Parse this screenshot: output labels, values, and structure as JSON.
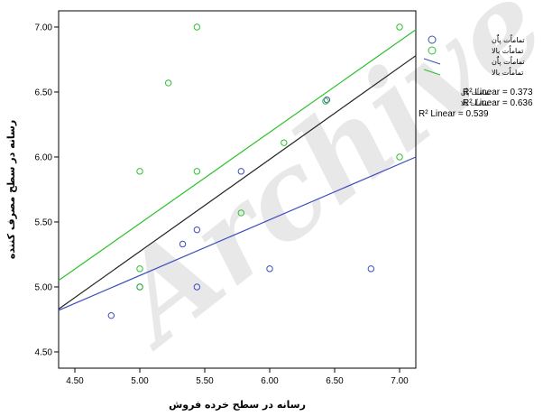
{
  "chart_data": {
    "type": "scatter",
    "xlabel": "رسانه در سطح خرده فروش",
    "ylabel": "رسانه در سطح مصرف کننده",
    "xlim": [
      4.375,
      7.125
    ],
    "ylim": [
      4.375,
      7.125
    ],
    "x_ticks": [
      "4.50",
      "5.00",
      "5.50",
      "6.00",
      "6.50",
      "7.00"
    ],
    "y_ticks": [
      "4.50",
      "5.00",
      "5.50",
      "6.00",
      "6.50",
      "7.00"
    ],
    "grid": false,
    "legend_position": "right",
    "watermark": "Archive",
    "series": [
      {
        "name": "تماماٌت پاٌٌن",
        "color": "#3b4cc0",
        "marker": "circle-open",
        "points": [
          {
            "x": 4.78,
            "y": 4.78
          },
          {
            "x": 5.0,
            "y": 5.0
          },
          {
            "x": 5.33,
            "y": 5.33
          },
          {
            "x": 5.44,
            "y": 5.44
          },
          {
            "x": 5.44,
            "y": 5.0
          },
          {
            "x": 5.78,
            "y": 5.89
          },
          {
            "x": 6.0,
            "y": 5.14
          },
          {
            "x": 6.44,
            "y": 6.44
          },
          {
            "x": 6.78,
            "y": 5.14
          }
        ]
      },
      {
        "name": "تماماٌت بالا",
        "color": "#2ec02e",
        "marker": "circle-open",
        "points": [
          {
            "x": 5.0,
            "y": 5.89
          },
          {
            "x": 5.0,
            "y": 5.14
          },
          {
            "x": 5.0,
            "y": 5.0
          },
          {
            "x": 5.22,
            "y": 6.57
          },
          {
            "x": 5.44,
            "y": 7.0
          },
          {
            "x": 5.44,
            "y": 5.89
          },
          {
            "x": 5.78,
            "y": 5.57
          },
          {
            "x": 6.11,
            "y": 6.11
          },
          {
            "x": 6.43,
            "y": 6.43
          },
          {
            "x": 7.0,
            "y": 7.0
          },
          {
            "x": 7.0,
            "y": 6.0
          }
        ]
      }
    ],
    "fit_lines": [
      {
        "name": "تماماٌت پاٌٌن",
        "color": "#3b4cc0",
        "x": [
          4.375,
          7.125
        ],
        "y": [
          4.82,
          6.0
        ],
        "r2_label": "R² Linear = 0.373"
      },
      {
        "name": "تماماٌت بالا",
        "color": "#2ec02e",
        "x": [
          4.375,
          7.125
        ],
        "y": [
          5.05,
          6.98
        ],
        "r2_label": "R² Linear = 0.636"
      },
      {
        "name": "",
        "color": "#222222",
        "x": [
          4.375,
          7.125
        ],
        "y": [
          4.83,
          6.78
        ],
        "r2_label": "R² Linear = 0.539"
      }
    ]
  }
}
